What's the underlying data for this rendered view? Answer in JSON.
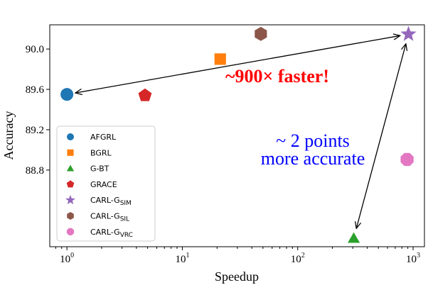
{
  "chart_data": {
    "type": "scatter",
    "x_label": "Speedup",
    "y_label": "Accuracy",
    "xscale": "log",
    "xlim": [
      0.71,
      1254
    ],
    "ylim": [
      88.04,
      90.24
    ],
    "xticks": [
      {
        "value": 1,
        "label": "10",
        "exponent": "0"
      },
      {
        "value": 10,
        "label": "10",
        "exponent": "1"
      },
      {
        "value": 100,
        "label": "10",
        "exponent": "2"
      },
      {
        "value": 1000,
        "label": "10",
        "exponent": "3"
      }
    ],
    "yticks": [
      88.8,
      89.2,
      89.6,
      {
        "value": 90,
        "label": "90.0"
      }
    ],
    "legend": "lower left",
    "series": [
      {
        "name": "AFGRL",
        "color": "#1f77b4",
        "marker": "circle",
        "x": [
          1
        ],
        "values": [
          89.55
        ]
      },
      {
        "name": "BGRL",
        "color": "#ff7f0e",
        "marker": "square",
        "x": [
          21.3
        ],
        "values": [
          89.9
        ]
      },
      {
        "name": "G-BT",
        "color": "#2ca02c",
        "marker": "triangle",
        "x": [
          306
        ],
        "values": [
          88.126
        ]
      },
      {
        "name": "GRACE",
        "color": "#d62728",
        "marker": "pentagon",
        "x": [
          4.75
        ],
        "values": [
          89.54
        ]
      },
      {
        "name": "CARL-G",
        "subscript": "SIM",
        "color": "#9467bd",
        "marker": "star",
        "x": [
          912
        ],
        "values": [
          90.147
        ]
      },
      {
        "name": "CARL-G",
        "subscript": "SIL",
        "color": "#8c564b",
        "marker": "hexagon",
        "x": [
          47.9
        ],
        "values": [
          90.15
        ]
      },
      {
        "name": "CARL-G",
        "subscript": "VRC",
        "color": "#e377c2",
        "marker": "octagon",
        "x": [
          887
        ],
        "values": [
          88.905
        ]
      }
    ],
    "annotations": [
      {
        "text": "~900× faster!",
        "color": "#ff0000"
      },
      {
        "text": "~ 2 points",
        "color": "#0000ff"
      },
      {
        "text": "more accurate",
        "color": "#0000ff"
      }
    ]
  }
}
